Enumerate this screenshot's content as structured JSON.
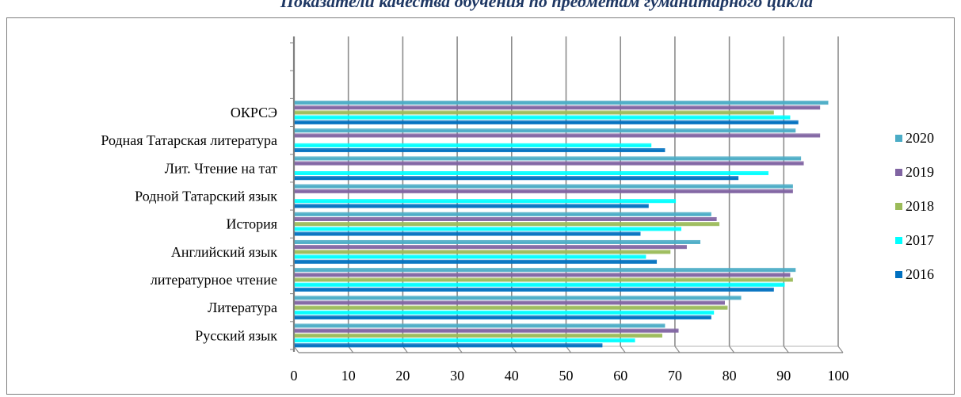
{
  "chart_data": {
    "type": "bar",
    "orientation": "horizontal",
    "title": "Показатели качества обучения по предметам гуманитарного цикла",
    "categories": [
      "Русский язык",
      "Литература",
      "литературное чтение",
      "Английский язык",
      "История",
      "Родной Татарский язык",
      "Лит. Чтение на тат",
      "Родная Татарская литература",
      "ОКРСЭ"
    ],
    "series": [
      {
        "name": "2016",
        "color": "#0070c0",
        "values": [
          56.5,
          76.5,
          88,
          66.5,
          63.5,
          65,
          81.5,
          68,
          92.5
        ]
      },
      {
        "name": "2017",
        "color": "#00ffff",
        "values": [
          62.5,
          77,
          90,
          64.5,
          71,
          70,
          87,
          65.5,
          91
        ]
      },
      {
        "name": "2018",
        "color": "#9bbb59",
        "values": [
          67.5,
          79.5,
          91.5,
          69,
          78,
          0,
          0,
          0,
          88
        ]
      },
      {
        "name": "2019",
        "color": "#8064a2",
        "values": [
          70.5,
          79,
          91,
          72,
          77.5,
          91.5,
          93.5,
          96.5,
          96.5
        ]
      },
      {
        "name": "2020",
        "color": "#4bacc6",
        "values": [
          68,
          82,
          92,
          74.5,
          76.5,
          91.5,
          93,
          92,
          98
        ]
      }
    ],
    "xlim": [
      0,
      100
    ],
    "xticks": [
      "0",
      "10",
      "20",
      "30",
      "40",
      "50",
      "60",
      "70",
      "80",
      "90",
      "100"
    ],
    "grid": true,
    "legend_position": "right",
    "legend_order": [
      "2020",
      "2019",
      "2018",
      "2017",
      "2016"
    ]
  }
}
